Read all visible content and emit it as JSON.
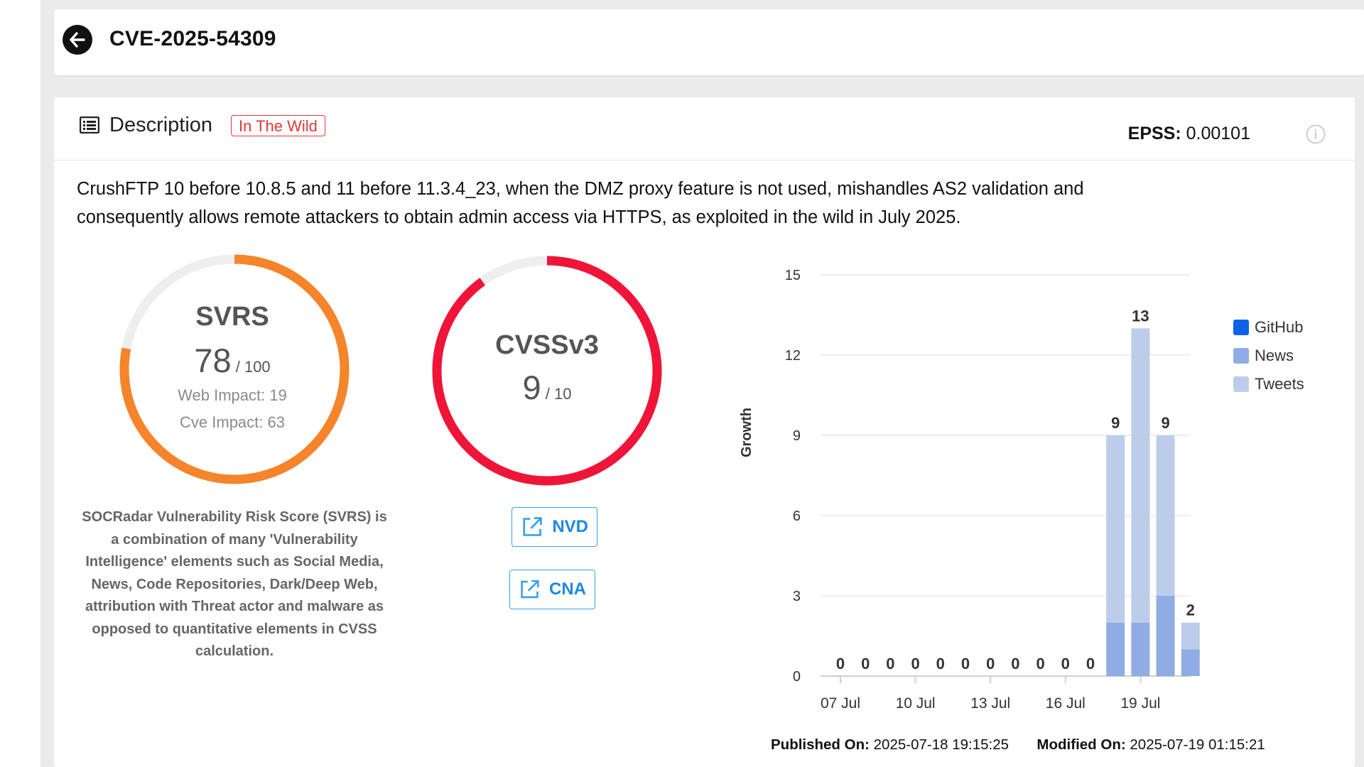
{
  "header": {
    "title": "CVE-2025-54309"
  },
  "description": {
    "title": "Description",
    "badge": "In The Wild",
    "epss_label": "EPSS:",
    "epss_value": "0.00101",
    "text": "CrushFTP 10 before 10.8.5 and 11 before 11.3.4_23, when the DMZ proxy feature is not used, mishandles AS2 validation and consequently allows remote attackers to obtain admin access via HTTPS, as exploited in the wild in July 2025."
  },
  "svrs": {
    "title": "SVRS",
    "score": 78,
    "max": 100,
    "score_text": "78",
    "max_text": "/ 100",
    "web_impact": "Web Impact: 19",
    "cve_impact": "Cve Impact: 63",
    "explanation": "SOCRadar Vulnerability Risk Score (SVRS) is a combination of many 'Vulnerability Intelligence' elements such as Social Media, News, Code Repositories, Dark/Deep Web, attribution with Threat actor and malware as opposed to quantitative elements in CVSS calculation."
  },
  "cvss": {
    "title": "CVSSv3",
    "score": 9,
    "max": 10,
    "score_text": "9",
    "max_text": "/ 10"
  },
  "links": {
    "nvd": "NVD",
    "cna": "CNA"
  },
  "colors": {
    "svrs": "#f5842b",
    "cvss": "#ee1538",
    "track": "#eeeeee",
    "github": "#0d63e6",
    "news": "#90ace4",
    "tweets": "#bccdeb",
    "link": "#1e88e5"
  },
  "chart_data": {
    "type": "bar",
    "stacked": true,
    "ylabel": "Growth",
    "ylim": [
      0,
      15
    ],
    "yticks": [
      0,
      3,
      6,
      9,
      12,
      15
    ],
    "x": [
      "07 Jul",
      "08 Jul",
      "09 Jul",
      "10 Jul",
      "11 Jul",
      "12 Jul",
      "13 Jul",
      "14 Jul",
      "15 Jul",
      "16 Jul",
      "17 Jul",
      "18 Jul",
      "19 Jul",
      "20 Jul",
      "21 Jul"
    ],
    "xtick_labels": [
      "07 Jul",
      "10 Jul",
      "13 Jul",
      "16 Jul",
      "19 Jul"
    ],
    "series": [
      {
        "name": "GitHub",
        "values": [
          0,
          0,
          0,
          0,
          0,
          0,
          0,
          0,
          0,
          0,
          0,
          0,
          0,
          0,
          0
        ]
      },
      {
        "name": "News",
        "values": [
          0,
          0,
          0,
          0,
          0,
          0,
          0,
          0,
          0,
          0,
          0,
          2,
          2,
          3,
          1
        ]
      },
      {
        "name": "Tweets",
        "values": [
          0,
          0,
          0,
          0,
          0,
          0,
          0,
          0,
          0,
          0,
          0,
          7,
          11,
          6,
          1
        ]
      }
    ],
    "totals": [
      0,
      0,
      0,
      0,
      0,
      0,
      0,
      0,
      0,
      0,
      0,
      9,
      13,
      9,
      2
    ],
    "grid": true,
    "legend": "right"
  },
  "footer": {
    "published_label": "Published On:",
    "published_value": "2025-07-18 19:15:25",
    "modified_label": "Modified On:",
    "modified_value": "2025-07-19 01:15:21"
  }
}
